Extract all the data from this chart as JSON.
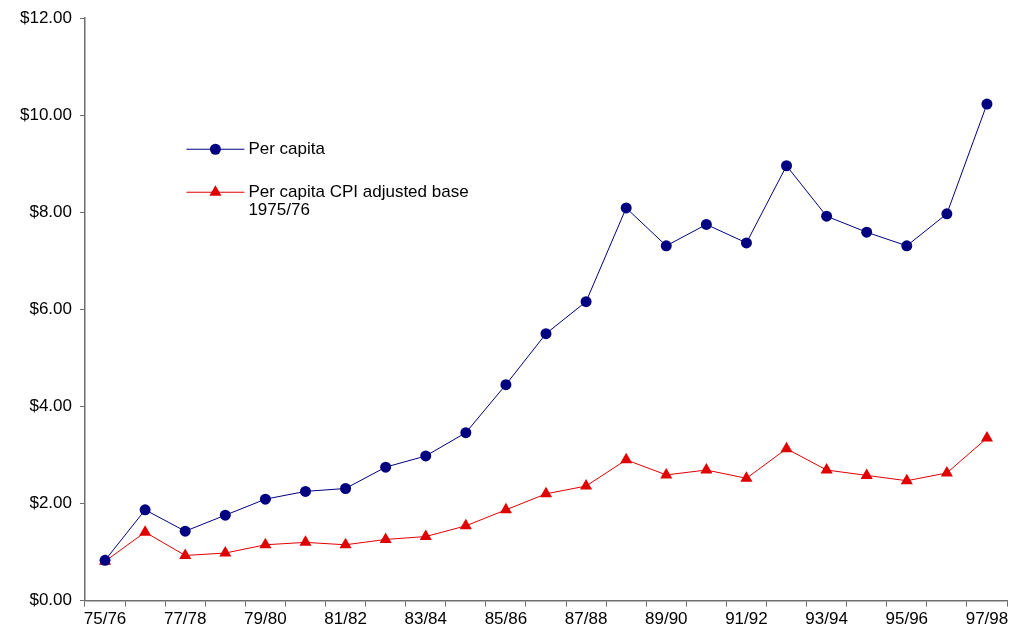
{
  "chart_data": {
    "type": "line",
    "categories": [
      "75/76",
      null,
      "77/78",
      null,
      "79/80",
      null,
      "81/82",
      null,
      "83/84",
      null,
      "85/86",
      null,
      "87/88",
      null,
      "89/90",
      null,
      "91/92",
      null,
      "93/94",
      null,
      "95/96",
      null,
      "97/98"
    ],
    "series": [
      {
        "name": "Per capita",
        "color": "#000080",
        "marker": "circle",
        "values": [
          0.83,
          1.87,
          1.43,
          1.76,
          2.09,
          2.25,
          2.31,
          2.75,
          2.98,
          3.46,
          4.45,
          5.5,
          6.16,
          8.09,
          7.31,
          7.75,
          7.37,
          8.96,
          7.92,
          7.59,
          7.31,
          7.97,
          10.23
        ]
      },
      {
        "name": "Per capita CPI adjusted base 1975/76",
        "color": "#e00000",
        "marker": "triangle",
        "values": [
          0.81,
          1.41,
          0.93,
          0.98,
          1.15,
          1.2,
          1.15,
          1.26,
          1.32,
          1.54,
          1.87,
          2.2,
          2.36,
          2.9,
          2.59,
          2.69,
          2.52,
          3.13,
          2.69,
          2.58,
          2.47,
          2.63,
          3.35
        ]
      }
    ],
    "ylim": [
      0,
      12
    ],
    "yticks": [
      {
        "value": 0,
        "label": "$0.00"
      },
      {
        "value": 2,
        "label": "$2.00"
      },
      {
        "value": 4,
        "label": "$4.00"
      },
      {
        "value": 6,
        "label": "$6.00"
      },
      {
        "value": 8,
        "label": "$8.00"
      },
      {
        "value": 10,
        "label": "$10.00"
      },
      {
        "value": 12,
        "label": "$12.00"
      }
    ],
    "legend": "top left"
  }
}
